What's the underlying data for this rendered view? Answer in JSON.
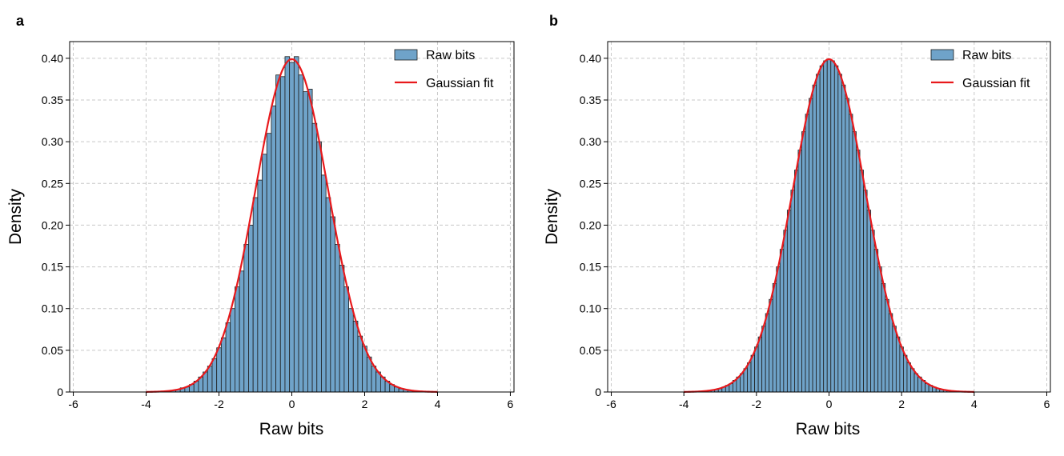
{
  "chart_data": [
    {
      "type": "bar",
      "panel_label": "a",
      "xlabel": "Raw bits",
      "ylabel": "Density",
      "xlim": [
        -6.1,
        6.1
      ],
      "ylim": [
        0,
        0.42
      ],
      "xticks": [
        -6,
        -4,
        -2,
        0,
        2,
        4,
        6
      ],
      "xtick_labels": [
        "-6",
        "-4",
        "-2",
        "0",
        "2",
        "4",
        "6"
      ],
      "yticks": [
        0,
        0.05,
        0.1,
        0.15,
        0.2,
        0.25,
        0.3,
        0.35,
        0.4
      ],
      "ytick_labels": [
        "0",
        "0.05",
        "0.10",
        "0.15",
        "0.20",
        "0.25",
        "0.30",
        "0.35",
        "0.40"
      ],
      "grid": true,
      "legend_position": "top-right",
      "series": [
        {
          "name": "Raw bits",
          "kind": "histogram",
          "color": "#6fa3c9",
          "bin_width": 0.125,
          "x": [
            -3.25,
            -3.125,
            -3.0,
            -2.875,
            -2.75,
            -2.625,
            -2.5,
            -2.375,
            -2.25,
            -2.125,
            -2.0,
            -1.875,
            -1.75,
            -1.625,
            -1.5,
            -1.375,
            -1.25,
            -1.125,
            -1.0,
            -0.875,
            -0.75,
            -0.625,
            -0.5,
            -0.375,
            -0.25,
            -0.125,
            0.0,
            0.125,
            0.25,
            0.375,
            0.5,
            0.625,
            0.75,
            0.875,
            1.0,
            1.125,
            1.25,
            1.375,
            1.5,
            1.625,
            1.75,
            1.875,
            2.0,
            2.125,
            2.25,
            2.375,
            2.5,
            2.625,
            2.75,
            2.875,
            3.0,
            3.125,
            3.25
          ],
          "values": [
            0.002,
            0.003,
            0.005,
            0.006,
            0.009,
            0.013,
            0.018,
            0.024,
            0.031,
            0.04,
            0.053,
            0.065,
            0.083,
            0.1,
            0.126,
            0.145,
            0.177,
            0.2,
            0.233,
            0.254,
            0.285,
            0.31,
            0.343,
            0.38,
            0.378,
            0.402,
            0.395,
            0.402,
            0.38,
            0.36,
            0.363,
            0.322,
            0.3,
            0.26,
            0.233,
            0.21,
            0.177,
            0.152,
            0.126,
            0.1,
            0.085,
            0.067,
            0.055,
            0.042,
            0.031,
            0.024,
            0.018,
            0.013,
            0.009,
            0.006,
            0.004,
            0.003,
            0.002
          ]
        },
        {
          "name": "Gaussian fit",
          "kind": "line",
          "color": "#e8191c",
          "x_range": [
            -4,
            4
          ],
          "mean": 0,
          "std": 1
        }
      ]
    },
    {
      "type": "bar",
      "panel_label": "b",
      "xlabel": "Raw bits",
      "ylabel": "Density",
      "xlim": [
        -6.1,
        6.1
      ],
      "ylim": [
        0,
        0.42
      ],
      "xticks": [
        -6,
        -4,
        -2,
        0,
        2,
        4,
        6
      ],
      "xtick_labels": [
        "-6",
        "-4",
        "-2",
        "0",
        "2",
        "4",
        "6"
      ],
      "yticks": [
        0,
        0.05,
        0.1,
        0.15,
        0.2,
        0.25,
        0.3,
        0.35,
        0.4
      ],
      "ytick_labels": [
        "0",
        "0.05",
        "0.10",
        "0.15",
        "0.20",
        "0.25",
        "0.30",
        "0.35",
        "0.40"
      ],
      "grid": true,
      "legend_position": "top-right",
      "series": [
        {
          "name": "Raw bits",
          "kind": "histogram",
          "color": "#6fa3c9",
          "bin_width": 0.1,
          "x": [
            -3.6,
            -3.5,
            -3.4,
            -3.3,
            -3.2,
            -3.1,
            -3.0,
            -2.9,
            -2.8,
            -2.7,
            -2.6,
            -2.5,
            -2.4,
            -2.3,
            -2.2,
            -2.1,
            -2.0,
            -1.9,
            -1.8,
            -1.7,
            -1.6,
            -1.5,
            -1.4,
            -1.3,
            -1.2,
            -1.1,
            -1.0,
            -0.9,
            -0.8,
            -0.7,
            -0.6,
            -0.5,
            -0.4,
            -0.3,
            -0.2,
            -0.1,
            0.0,
            0.1,
            0.2,
            0.3,
            0.4,
            0.5,
            0.6,
            0.7,
            0.8,
            0.9,
            1.0,
            1.1,
            1.2,
            1.3,
            1.4,
            1.5,
            1.6,
            1.7,
            1.8,
            1.9,
            2.0,
            2.1,
            2.2,
            2.3,
            2.4,
            2.5,
            2.6,
            2.7,
            2.8,
            2.9,
            3.0,
            3.1,
            3.2,
            3.3,
            3.4,
            3.5,
            3.6
          ],
          "values": [
            0.001,
            0.001,
            0.001,
            0.002,
            0.002,
            0.003,
            0.004,
            0.006,
            0.008,
            0.01,
            0.014,
            0.018,
            0.022,
            0.028,
            0.035,
            0.044,
            0.054,
            0.066,
            0.079,
            0.094,
            0.111,
            0.13,
            0.15,
            0.171,
            0.194,
            0.218,
            0.242,
            0.266,
            0.29,
            0.312,
            0.333,
            0.352,
            0.368,
            0.381,
            0.391,
            0.397,
            0.399,
            0.397,
            0.391,
            0.381,
            0.368,
            0.352,
            0.333,
            0.312,
            0.29,
            0.266,
            0.242,
            0.218,
            0.194,
            0.171,
            0.15,
            0.13,
            0.111,
            0.094,
            0.079,
            0.066,
            0.054,
            0.044,
            0.035,
            0.028,
            0.022,
            0.018,
            0.014,
            0.01,
            0.008,
            0.006,
            0.004,
            0.003,
            0.002,
            0.002,
            0.001,
            0.001,
            0.001
          ]
        },
        {
          "name": "Gaussian fit",
          "kind": "line",
          "color": "#e8191c",
          "x_range": [
            -4,
            4
          ],
          "mean": 0,
          "std": 1
        }
      ]
    }
  ]
}
